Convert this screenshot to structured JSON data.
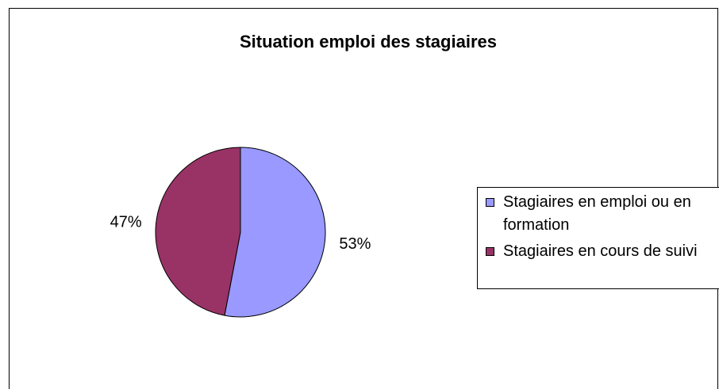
{
  "chart_data": {
    "type": "pie",
    "title": "Situation emploi des stagiaires",
    "categories": [
      "Stagiaires en emploi ou en formation",
      "Stagiaires en cours de suivi"
    ],
    "values": [
      53,
      47
    ],
    "value_labels": [
      "53%",
      "47%"
    ],
    "colors": [
      "#9999ff",
      "#993366"
    ],
    "legend": "right"
  }
}
